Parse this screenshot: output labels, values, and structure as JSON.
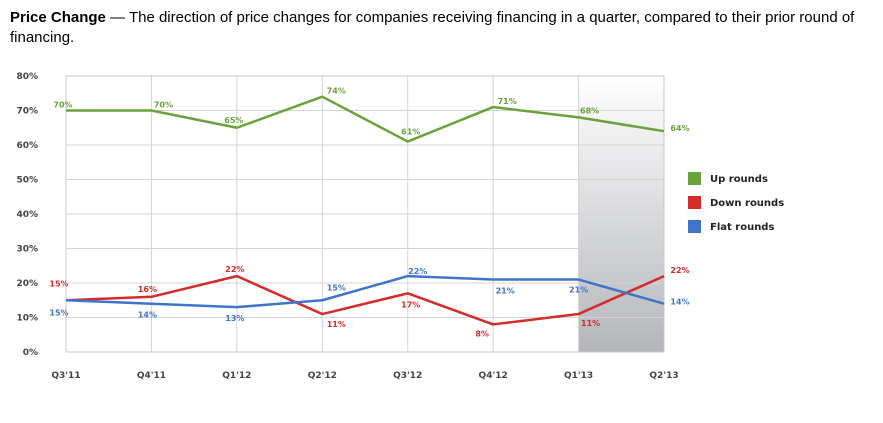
{
  "caption": {
    "title": "Price Change",
    "text": " — The direction of price changes for companies receiving financing in a quarter, compared to their prior round of financing."
  },
  "chart_data": {
    "type": "line",
    "title": "Price Change",
    "categories": [
      "Q3'11",
      "Q4'11",
      "Q1'12",
      "Q2'12",
      "Q3'12",
      "Q4'12",
      "Q1'13",
      "Q2'13"
    ],
    "ylim": [
      0,
      80
    ],
    "yticks": [
      0,
      10,
      20,
      30,
      40,
      50,
      60,
      70,
      80
    ],
    "ytick_labels": [
      "0%",
      "10%",
      "20%",
      "30%",
      "40%",
      "50%",
      "60%",
      "70%",
      "80%"
    ],
    "grid": true,
    "legend_position": "right",
    "highlighted_categories": [
      "Q1'13",
      "Q2'13"
    ],
    "series": [
      {
        "name": "Up rounds",
        "color": "#6aa23c",
        "values": [
          70,
          70,
          65,
          74,
          61,
          71,
          68,
          64
        ],
        "labels": [
          "70%",
          "70%",
          "65%",
          "74%",
          "61%",
          "71%",
          "68%",
          "64%"
        ]
      },
      {
        "name": "Down rounds",
        "color": "#d42b2b",
        "values": [
          15,
          16,
          22,
          11,
          17,
          8,
          11,
          22
        ],
        "labels": [
          "15%",
          "16%",
          "22%",
          "11%",
          "17%",
          "8%",
          "11%",
          "22%"
        ]
      },
      {
        "name": "Flat rounds",
        "color": "#3f74c9",
        "values": [
          15,
          14,
          13,
          15,
          22,
          21,
          21,
          14
        ],
        "labels": [
          "15%",
          "14%",
          "13%",
          "15%",
          "22%",
          "21%",
          "21%",
          "14%"
        ]
      }
    ]
  }
}
